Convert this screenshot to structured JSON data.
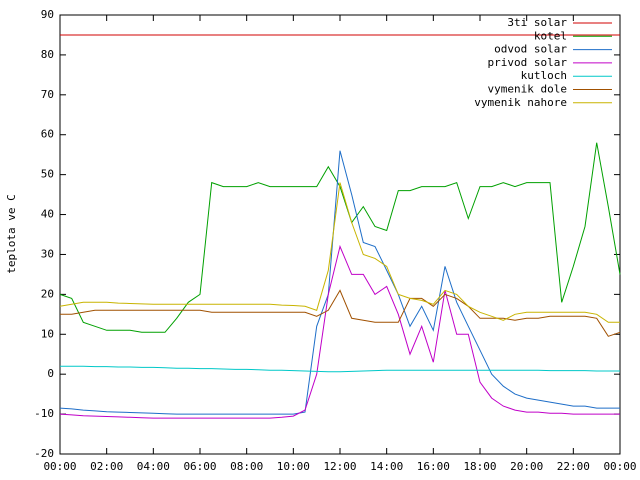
{
  "chart_data": {
    "type": "line",
    "ylabel": "teplota ve C",
    "x": [
      0,
      0.5,
      1,
      1.5,
      2,
      2.5,
      3,
      3.5,
      4,
      4.5,
      5,
      5.5,
      6,
      6.5,
      7,
      7.5,
      8,
      8.5,
      9,
      9.5,
      10,
      10.5,
      11,
      11.5,
      12,
      12.5,
      13,
      13.5,
      14,
      14.5,
      15,
      15.5,
      16,
      16.5,
      17,
      17.5,
      18,
      18.5,
      19,
      19.5,
      20,
      20.5,
      21,
      21.5,
      22,
      22.5,
      23,
      23.5,
      24
    ],
    "xlim": [
      0,
      24
    ],
    "xticks": [
      {
        "value": 0,
        "label": "00:00"
      },
      {
        "value": 2,
        "label": "02:00"
      },
      {
        "value": 4,
        "label": "04:00"
      },
      {
        "value": 6,
        "label": "06:00"
      },
      {
        "value": 8,
        "label": "08:00"
      },
      {
        "value": 10,
        "label": "10:00"
      },
      {
        "value": 12,
        "label": "12:00"
      },
      {
        "value": 14,
        "label": "14:00"
      },
      {
        "value": 16,
        "label": "16:00"
      },
      {
        "value": 18,
        "label": "18:00"
      },
      {
        "value": 20,
        "label": "20:00"
      },
      {
        "value": 22,
        "label": "22:00"
      },
      {
        "value": 24,
        "label": "00:00"
      }
    ],
    "ylim": [
      -20,
      90
    ],
    "yticks": [
      -20,
      -10,
      0,
      10,
      20,
      30,
      40,
      50,
      60,
      70,
      80,
      90
    ],
    "legend": "top-right",
    "series": [
      {
        "name": "3ti solar",
        "color": "#d00000",
        "values": [
          85,
          85,
          85,
          85,
          85,
          85,
          85,
          85,
          85,
          85,
          85,
          85,
          85,
          85,
          85,
          85,
          85,
          85,
          85,
          85,
          85,
          85,
          85,
          85,
          85,
          85,
          85,
          85,
          85,
          85,
          85,
          85,
          85,
          85,
          85,
          85,
          85,
          85,
          85,
          85,
          85,
          85,
          85,
          85,
          85,
          85,
          85,
          85,
          85
        ]
      },
      {
        "name": "kotel",
        "color": "#00a000",
        "values": [
          20,
          19,
          13,
          12,
          11,
          11,
          11,
          10.5,
          10.5,
          10.5,
          14,
          18,
          20,
          48,
          47,
          47,
          47,
          48,
          47,
          47,
          47,
          47,
          47,
          52,
          47,
          38,
          42,
          37,
          36,
          46,
          46,
          47,
          47,
          47,
          48,
          39,
          47,
          47,
          48,
          47,
          48,
          48,
          48,
          18,
          27,
          37,
          58,
          42,
          25
        ]
      },
      {
        "name": "odvod solar",
        "color": "#1e6ec8",
        "values": [
          -8.5,
          -8.7,
          -9,
          -9.2,
          -9.4,
          -9.5,
          -9.6,
          -9.7,
          -9.8,
          -9.9,
          -10,
          -10,
          -10,
          -10,
          -10,
          -10,
          -10,
          -10,
          -10,
          -10,
          -10,
          -9.5,
          12,
          20,
          56,
          45,
          33,
          32,
          26,
          20,
          12,
          17,
          11,
          27,
          18,
          12,
          6,
          0,
          -3,
          -5,
          -6,
          -6.5,
          -7,
          -7.5,
          -8,
          -8,
          -8.5,
          -8.5,
          -8.5
        ]
      },
      {
        "name": "privod solar",
        "color": "#c000c8",
        "values": [
          -10,
          -10.2,
          -10.4,
          -10.5,
          -10.6,
          -10.7,
          -10.8,
          -10.9,
          -11,
          -11,
          -11,
          -11,
          -11,
          -11,
          -11,
          -11,
          -11,
          -11,
          -11,
          -10.8,
          -10.5,
          -9,
          0,
          20,
          32,
          25,
          25,
          20,
          22,
          15,
          5,
          12,
          3,
          21,
          10,
          10,
          -2,
          -6,
          -8,
          -9,
          -9.5,
          -9.5,
          -9.8,
          -9.8,
          -10,
          -10,
          -10,
          -10,
          -10
        ]
      },
      {
        "name": "kutloch",
        "color": "#00c8c8",
        "values": [
          2,
          2,
          2,
          1.9,
          1.9,
          1.8,
          1.8,
          1.7,
          1.7,
          1.6,
          1.5,
          1.5,
          1.4,
          1.4,
          1.3,
          1.2,
          1.2,
          1.1,
          1,
          1,
          0.9,
          0.8,
          0.7,
          0.6,
          0.6,
          0.7,
          0.8,
          0.9,
          1,
          1,
          1,
          1,
          1,
          1,
          1,
          1,
          1,
          1,
          1,
          1,
          1,
          1,
          0.9,
          0.9,
          0.9,
          0.9,
          0.8,
          0.8,
          0.8
        ]
      },
      {
        "name": "vymenik dole",
        "color": "#a05000",
        "values": [
          15,
          15,
          15.5,
          16,
          16,
          16,
          16,
          16,
          16,
          16,
          16,
          16,
          16,
          15.5,
          15.5,
          15.5,
          15.5,
          15.5,
          15.5,
          15.5,
          15.5,
          15.5,
          14.5,
          16,
          21,
          14,
          13.5,
          13,
          13,
          13,
          19,
          19,
          17,
          20,
          19,
          17,
          14,
          14,
          14,
          13.5,
          14,
          14,
          14.5,
          14.5,
          14.5,
          14.5,
          14,
          9.5,
          10.5
        ]
      },
      {
        "name": "vymenik nahore",
        "color": "#c8b400",
        "values": [
          17,
          17.5,
          18,
          18,
          18,
          17.8,
          17.7,
          17.6,
          17.5,
          17.5,
          17.5,
          17.5,
          17.5,
          17.5,
          17.5,
          17.5,
          17.5,
          17.5,
          17.5,
          17.3,
          17.2,
          17,
          16,
          26,
          48,
          38,
          30,
          29,
          27,
          20,
          19,
          18.5,
          17.5,
          21,
          20,
          17,
          15.5,
          14.5,
          13.5,
          15,
          15.5,
          15.5,
          15.5,
          15.5,
          15.5,
          15.5,
          15,
          13,
          13
        ]
      }
    ]
  }
}
